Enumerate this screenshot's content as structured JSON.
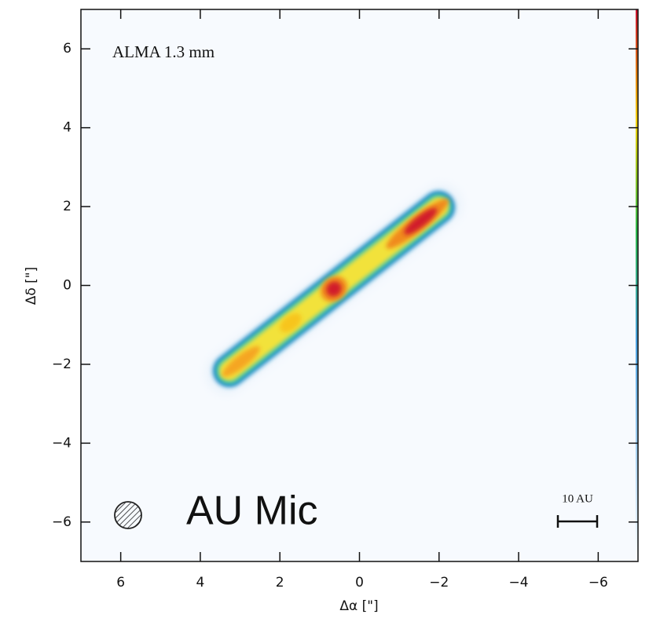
{
  "chart_data": {
    "type": "image",
    "annotations": [
      "ALMA 1.3 mm",
      "AU Mic",
      "10 AU"
    ],
    "xlabel": "Δα [\"]",
    "ylabel": "Δδ [\"]",
    "xlim": [
      7,
      -7
    ],
    "ylim": [
      -7,
      7
    ],
    "xticks": [
      6,
      4,
      2,
      0,
      {
        "value": -2,
        "label": "−2"
      },
      {
        "value": -4,
        "label": "−4"
      },
      {
        "value": -6,
        "label": "−6"
      }
    ],
    "yticks": [
      {
        "value": -6,
        "label": "−6"
      },
      {
        "value": -4,
        "label": "−4"
      },
      {
        "value": -2,
        "label": "−2"
      },
      0,
      2,
      4,
      6
    ]
  }
}
